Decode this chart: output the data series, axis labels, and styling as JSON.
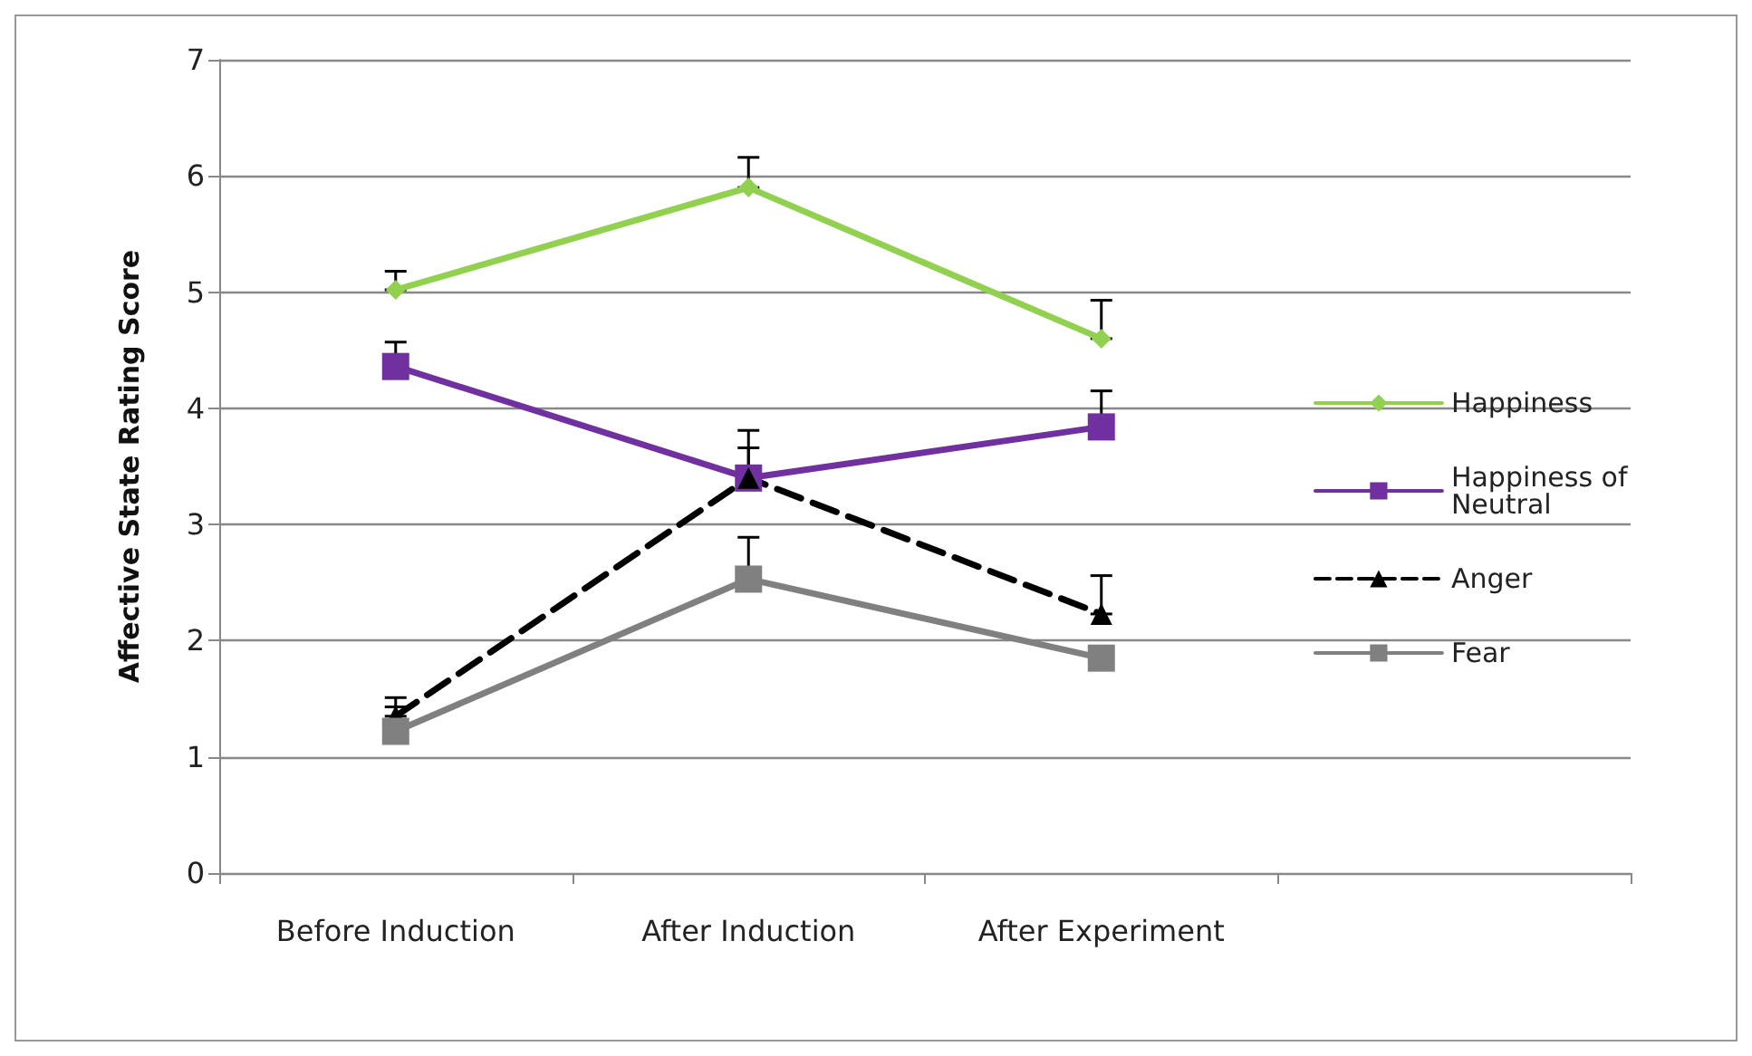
{
  "chart_data": {
    "type": "line",
    "ylabel": "Affective State Rating Score",
    "categories": [
      "Before Induction",
      "After Induction",
      "After Experiment",
      null
    ],
    "ylim": [
      0,
      7
    ],
    "yticks": [
      0,
      1,
      2,
      3,
      4,
      5,
      6,
      7
    ],
    "grid": "y",
    "legend": "right",
    "series": [
      {
        "name": "Happiness",
        "color": "#92d050",
        "marker": "diamond",
        "line_style": "solid",
        "values": [
          5.02,
          5.9,
          4.6,
          null
        ],
        "errors": [
          [
            5.02,
            5.18
          ],
          [
            5.9,
            6.16
          ],
          [
            4.6,
            4.93
          ],
          null
        ]
      },
      {
        "name": "Happiness of Neutral",
        "color": "#7030a0",
        "marker": "square",
        "line_style": "solid",
        "values": [
          4.36,
          3.4,
          3.84,
          null
        ],
        "errors": [
          [
            4.36,
            4.57
          ],
          [
            3.4,
            3.66
          ],
          [
            3.84,
            4.15
          ],
          null
        ]
      },
      {
        "name": "Anger",
        "color": "#000000",
        "marker": "triangle",
        "line_style": "dashed",
        "values": [
          1.35,
          3.4,
          2.23,
          null
        ],
        "errors": [
          [
            1.35,
            1.51
          ],
          [
            3.4,
            3.81
          ],
          [
            2.23,
            2.56
          ],
          null
        ]
      },
      {
        "name": "Fear",
        "color": "#808080",
        "marker": "square",
        "line_style": "solid",
        "values": [
          1.22,
          2.53,
          1.85,
          null
        ],
        "errors": [
          [
            1.22,
            1.43
          ],
          [
            2.53,
            2.89
          ],
          null,
          null
        ]
      }
    ]
  }
}
